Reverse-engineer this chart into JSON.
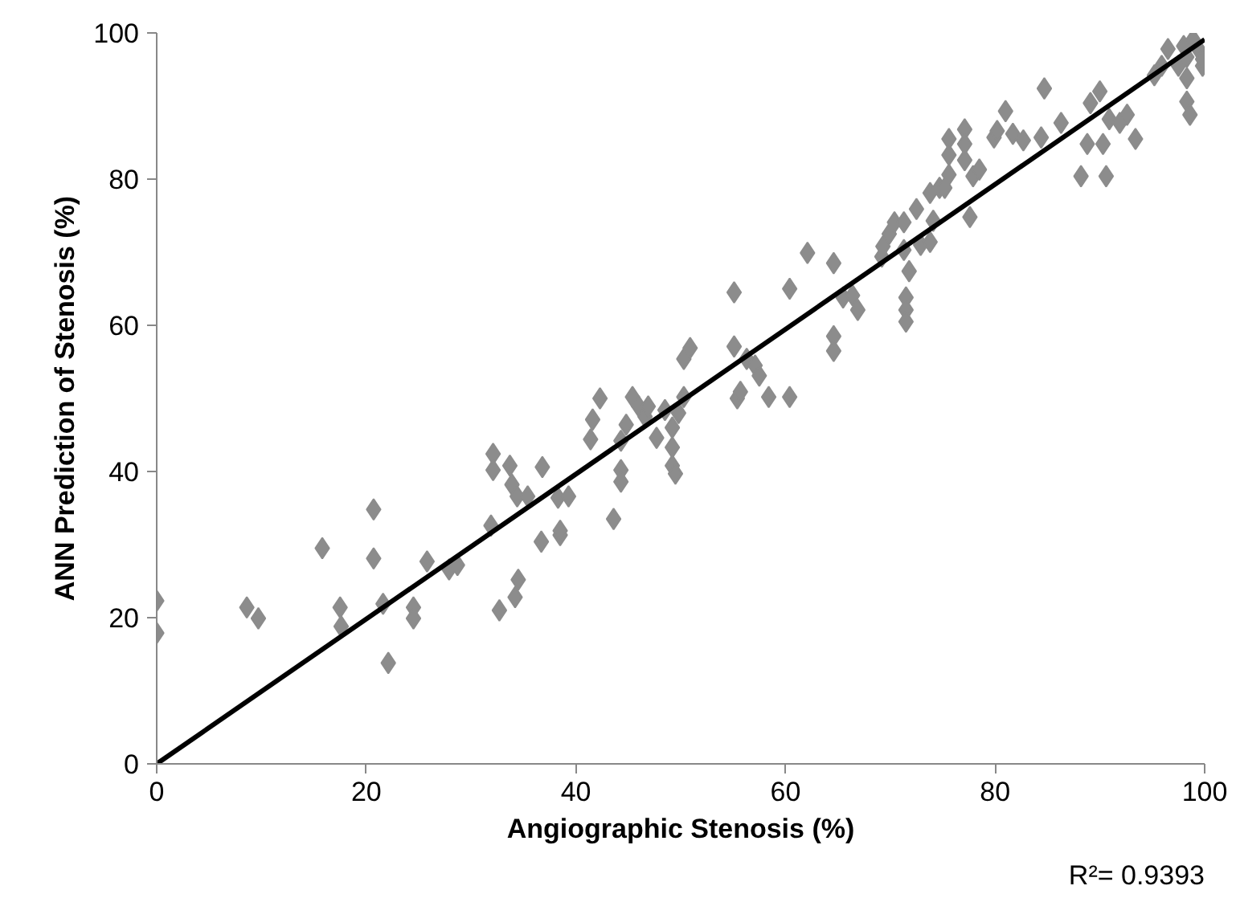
{
  "chart_data": {
    "type": "scatter",
    "xlabel": "Angiographic Stenosis (%)",
    "ylabel": "ANN Prediction of Stenosis (%)",
    "xlim": [
      0,
      100
    ],
    "ylim": [
      0,
      100
    ],
    "xticks": [
      0,
      20,
      40,
      60,
      80,
      100
    ],
    "yticks": [
      0,
      20,
      40,
      60,
      80,
      100
    ],
    "grid": false,
    "marker": "diamond",
    "annotations": [
      "R²= 0.9393"
    ],
    "series": [
      {
        "color": "#8c8c8c",
        "x": [
          0,
          0,
          8.6,
          9.7,
          15.8,
          17.5,
          17.6,
          20.7,
          20.7,
          21.6,
          22.1,
          24.5,
          24.5,
          25.8,
          27.9,
          28.7,
          31.9,
          32.1,
          32.1,
          32.7,
          33.7,
          33.9,
          34.4,
          34.2,
          34.5,
          35.4,
          36.7,
          36.8,
          38.3,
          38.5,
          38.5,
          39.3,
          41.4,
          42.3,
          41.6,
          43.6,
          44.3,
          44.3,
          44.3,
          44.8,
          45.4,
          46,
          46.6,
          46.9,
          47.7,
          48.5,
          49.2,
          49.2,
          49.2,
          49.5,
          49.8,
          50.3,
          50.3,
          50.9,
          55.1,
          55.1,
          55.4,
          55.7,
          56.3,
          57.1,
          57.5,
          58.4,
          60.4,
          60.4,
          62.1,
          64.6,
          64.6,
          64.6,
          65.5,
          66.4,
          66.9,
          69.2,
          69.3,
          69.9,
          70.4,
          71.3,
          71.3,
          71.8,
          71.5,
          71.5,
          71.5,
          72.5,
          72.9,
          73.8,
          73.8,
          74.1,
          74.7,
          75.6,
          75.2,
          75.6,
          75.6,
          77.1,
          77.1,
          77.1,
          77.6,
          77.9,
          78.5,
          79.9,
          80.2,
          81,
          81.7,
          82.7,
          84.4,
          84.7,
          86.3,
          88.2,
          88.8,
          89.1,
          90,
          90.3,
          90.6,
          90.9,
          91.9,
          92.6,
          93.4,
          95.2,
          95.9,
          96.5,
          97.5,
          98.3,
          98.3,
          98.3,
          98.6,
          98.9,
          99.4,
          99.8,
          99.8,
          98
        ],
        "values": [
          22.3,
          17.9,
          21.4,
          19.9,
          29.5,
          21.4,
          18.8,
          34.8,
          28.1,
          21.9,
          13.8,
          21.4,
          19.9,
          27.7,
          26.6,
          27.2,
          32.6,
          42.4,
          40.2,
          21,
          40.8,
          38.2,
          36.6,
          22.8,
          25.2,
          36.6,
          30.4,
          40.6,
          36.4,
          31.3,
          31.9,
          36.6,
          44.4,
          50,
          47.1,
          33.5,
          44.2,
          40.2,
          38.6,
          46.4,
          50.2,
          48.9,
          47.5,
          48.9,
          44.6,
          48.4,
          43.3,
          46,
          40.8,
          39.7,
          48,
          50.2,
          55.4,
          56.9,
          64.5,
          57.1,
          50,
          50.9,
          55.4,
          54.5,
          53.1,
          50.2,
          50.2,
          65,
          69.9,
          68.5,
          58.5,
          56.5,
          63.8,
          64.1,
          62.1,
          69.4,
          70.8,
          72.5,
          74.1,
          74.1,
          70.3,
          67.4,
          63.8,
          62.1,
          60.5,
          75.9,
          71,
          78.1,
          71.4,
          74.3,
          78.8,
          80.6,
          78.8,
          85.5,
          83.3,
          86.8,
          84.8,
          82.6,
          74.8,
          80.4,
          81.3,
          85.7,
          86.6,
          89.3,
          86.2,
          85.3,
          85.7,
          92.4,
          87.7,
          80.4,
          84.8,
          90.4,
          92,
          84.8,
          80.4,
          88.2,
          87.7,
          88.8,
          85.5,
          94.2,
          95.5,
          97.8,
          95.5,
          96.7,
          93.8,
          90.6,
          88.8,
          99.1,
          97.8,
          95.5,
          96.4,
          98.2
        ]
      },
      {
        "type": "line",
        "color": "#000000",
        "x": [
          0,
          100
        ],
        "values": [
          0,
          99.1
        ],
        "marker": "none",
        "line_style": "solid"
      }
    ]
  }
}
